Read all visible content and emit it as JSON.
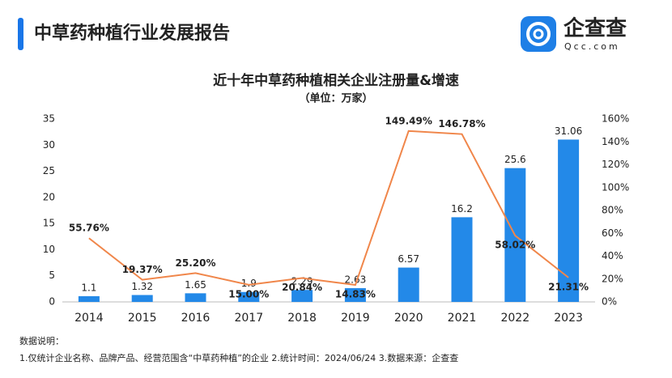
{
  "header": {
    "title": "中草药种植行业发展报告",
    "brand": "企查查",
    "brand_url": "Qcc.com"
  },
  "notes": [
    "数据说明：",
    "1.仅统计企业名称、品牌产品、经营范围含“中草药种植”的企业  2.统计时间：2024/06/24  3.数据来源：企查查"
  ],
  "chart_data": {
    "type": "bar_line",
    "title": "近十年中草药种植相关企业注册量&增速",
    "subtitle": "（单位：万家）",
    "categories": [
      "2014",
      "2015",
      "2016",
      "2017",
      "2018",
      "2019",
      "2020",
      "2021",
      "2022",
      "2023"
    ],
    "series": [
      {
        "name": "注册量",
        "type": "bar",
        "color": "#2389e8",
        "values": [
          1.1,
          1.32,
          1.65,
          1.9,
          2.29,
          2.63,
          6.57,
          16.2,
          25.6,
          31.06
        ]
      },
      {
        "name": "增速",
        "type": "line",
        "axis": "y2",
        "color": "#f0864a",
        "values": [
          55.76,
          19.37,
          25.2,
          15.0,
          20.84,
          14.83,
          149.49,
          146.78,
          58.02,
          21.31
        ],
        "value_labels": [
          "55.76%",
          "19.37%",
          "25.20%",
          "15.00%",
          "20.84%",
          "14.83%",
          "149.49%",
          "146.78%",
          "58.02%",
          "21.31%"
        ]
      }
    ],
    "ylim": [
      0,
      35
    ],
    "yticks": [
      0,
      5,
      10,
      15,
      20,
      25,
      30,
      35
    ],
    "y2lim": [
      0,
      160
    ],
    "y2ticks": [
      {
        "value": 0,
        "label": "0%"
      },
      {
        "value": 20,
        "label": "20%"
      },
      {
        "value": 40,
        "label": "40%"
      },
      {
        "value": 60,
        "label": "60%"
      },
      {
        "value": 80,
        "label": "80%"
      },
      {
        "value": 100,
        "label": "100%"
      },
      {
        "value": 120,
        "label": "120%"
      },
      {
        "value": 140,
        "label": "140%"
      },
      {
        "value": 160,
        "label": "160%"
      }
    ],
    "grid": false
  }
}
